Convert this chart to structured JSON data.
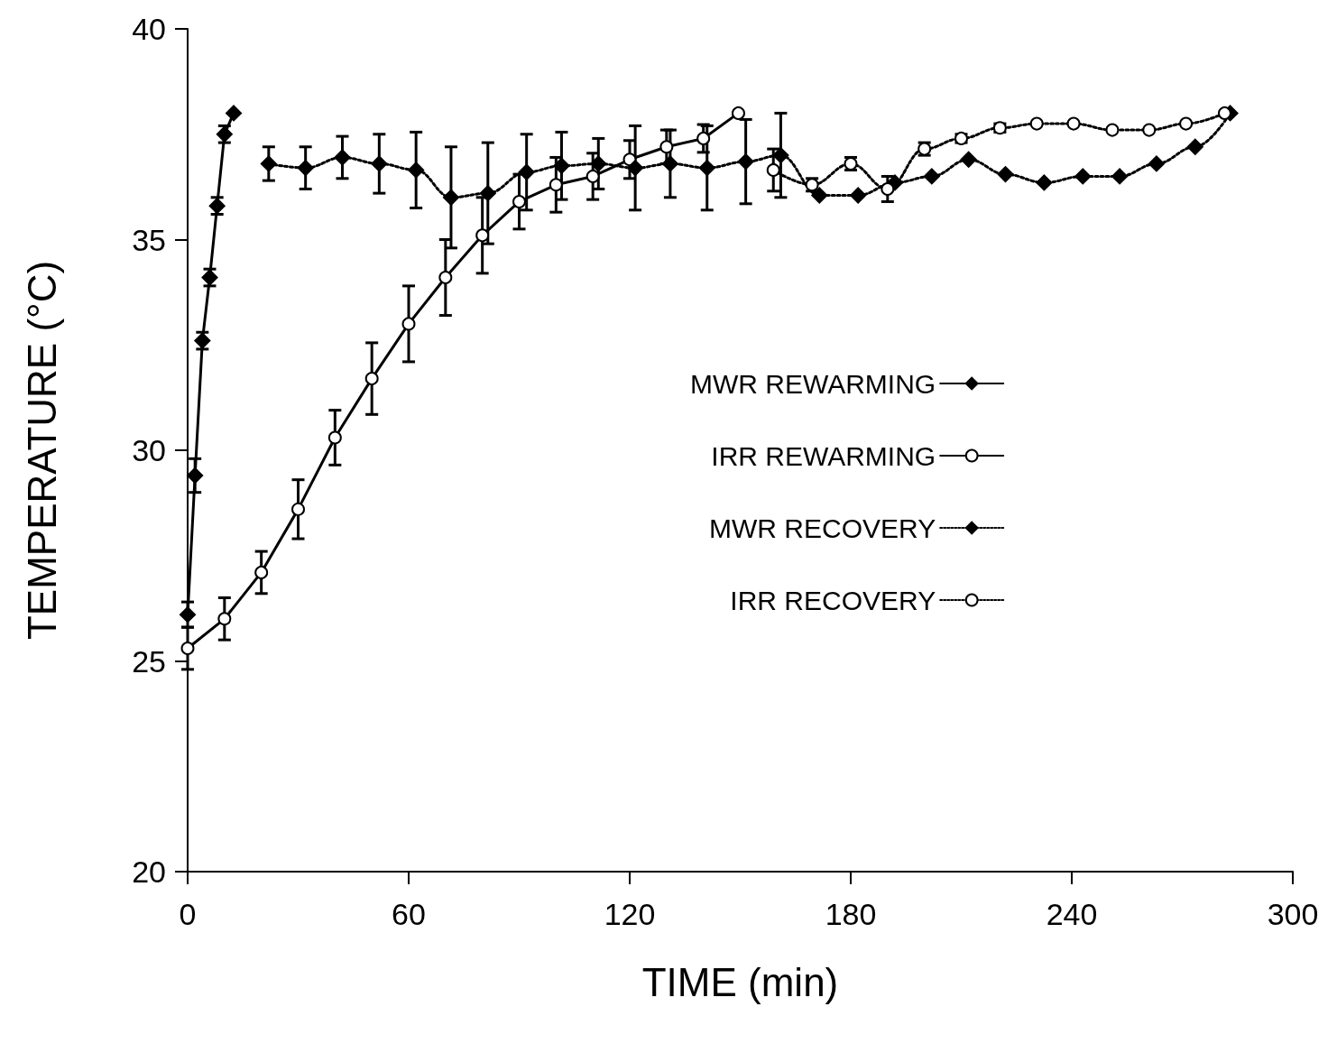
{
  "chart_data": {
    "type": "line",
    "xlabel": "TIME (min)",
    "ylabel": "TEMPERATURE (°C)",
    "xlim": [
      0,
      300
    ],
    "xticks": [
      0,
      60,
      120,
      180,
      240,
      300
    ],
    "ylim": [
      20,
      40
    ],
    "yticks": [
      20,
      25,
      30,
      35,
      40
    ],
    "grid": false,
    "legend": "right",
    "series": [
      {
        "name": "MWR REWARMING",
        "color": "#000000",
        "marker": "diamond",
        "line_style": "solid",
        "x": [
          0,
          2,
          4,
          6,
          8,
          10,
          12.5
        ],
        "values": [
          26.1,
          29.4,
          32.6,
          34.1,
          35.8,
          37.5,
          38.0
        ],
        "errors": [
          0.3,
          0.4,
          0.2,
          0.2,
          0.2,
          0.2,
          null
        ]
      },
      {
        "name": "IRR REWARMING",
        "color": "#000000",
        "marker": "circle",
        "line_style": "solid",
        "x": [
          0,
          10,
          20,
          30,
          40,
          50,
          60,
          70,
          80,
          90,
          100,
          110,
          120,
          130,
          140,
          149.5
        ],
        "values": [
          25.3,
          26.0,
          27.1,
          28.6,
          30.3,
          31.7,
          33.0,
          34.1,
          35.1,
          35.9,
          36.3,
          36.5,
          36.9,
          37.2,
          37.4,
          38.0
        ],
        "errors": [
          0.5,
          0.5,
          0.5,
          0.7,
          0.65,
          0.85,
          0.9,
          0.9,
          0.9,
          0.65,
          0.65,
          0.55,
          0.45,
          0.4,
          0.33,
          null
        ]
      },
      {
        "name": "MWR RECOVERY",
        "color": "#000000",
        "marker": "diamond",
        "line_style": "dotted",
        "x": [
          22,
          32,
          42,
          52,
          62,
          71.5,
          81.5,
          92,
          101.5,
          111.5,
          121.5,
          131,
          141,
          151.5,
          161,
          171.5,
          182,
          192,
          202,
          212,
          222,
          232.5,
          243,
          253,
          263,
          273.5,
          283
        ],
        "values": [
          36.8,
          36.7,
          36.95,
          36.8,
          36.65,
          36.0,
          36.1,
          36.6,
          36.75,
          36.8,
          36.7,
          36.8,
          36.7,
          36.85,
          37.0,
          36.05,
          36.05,
          36.35,
          36.5,
          36.9,
          36.55,
          36.35,
          36.5,
          36.5,
          36.8,
          37.2,
          38.0
        ],
        "errors": [
          0.4,
          0.5,
          0.5,
          0.7,
          0.9,
          1.2,
          1.2,
          0.9,
          0.8,
          0.6,
          1.0,
          0.8,
          1.0,
          1.0,
          1.0,
          null,
          null,
          null,
          null,
          null,
          null,
          null,
          null,
          null,
          null,
          null,
          null
        ]
      },
      {
        "name": "IRR RECOVERY",
        "color": "#000000",
        "marker": "circle",
        "line_style": "dotted",
        "x": [
          159,
          169.5,
          180,
          190,
          200,
          210,
          220.5,
          230.5,
          240.5,
          251,
          261,
          271,
          281.5
        ],
        "values": [
          36.65,
          36.3,
          36.8,
          36.2,
          37.15,
          37.4,
          37.65,
          37.75,
          37.75,
          37.6,
          37.6,
          37.75,
          38.0
        ],
        "errors": [
          0.5,
          0.15,
          0.15,
          0.3,
          0.15,
          0.1,
          0.1,
          null,
          null,
          null,
          null,
          null,
          null
        ]
      }
    ]
  }
}
